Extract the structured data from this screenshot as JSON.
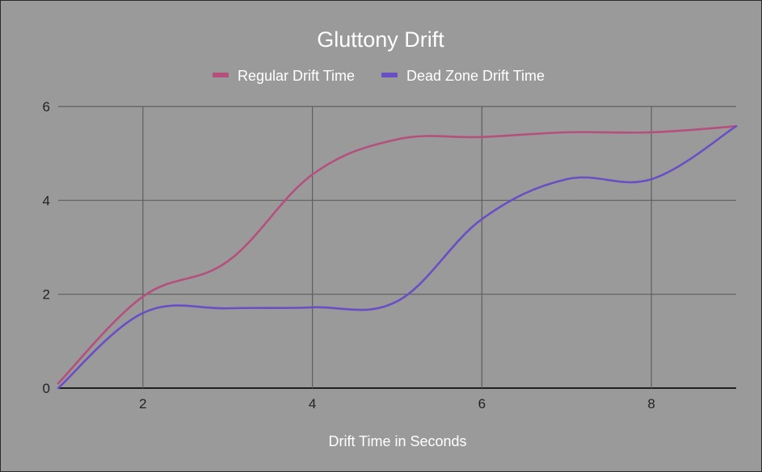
{
  "chart_data": {
    "type": "line",
    "title": "Gluttony Drift",
    "xlabel": "Drift Time in Seconds",
    "ylabel": "",
    "xlim": [
      1,
      9
    ],
    "ylim": [
      0,
      6
    ],
    "xticks": [
      2,
      4,
      6,
      8
    ],
    "yticks": [
      0,
      2,
      4,
      6
    ],
    "grid": true,
    "legend": "top",
    "smooth": true,
    "colors": {
      "background": "#9a9a9a",
      "grid": "#5f5f5f",
      "baseline": "#1f1f1f",
      "text": "#ffffff",
      "tick_text": "#222222"
    },
    "series": [
      {
        "name": "Regular Drift Time",
        "color": "#b5507e",
        "x": [
          1,
          2,
          3,
          4,
          5,
          6,
          7,
          8,
          9
        ],
        "y": [
          0.1,
          1.95,
          2.7,
          4.55,
          5.3,
          5.35,
          5.45,
          5.45,
          5.58
        ]
      },
      {
        "name": "Dead Zone Drift Time",
        "color": "#6a4fc4",
        "x": [
          1,
          2,
          3,
          4,
          5,
          6,
          7,
          8,
          9
        ],
        "y": [
          0.0,
          1.6,
          1.7,
          1.72,
          1.85,
          3.6,
          4.45,
          4.45,
          5.58
        ]
      }
    ]
  }
}
